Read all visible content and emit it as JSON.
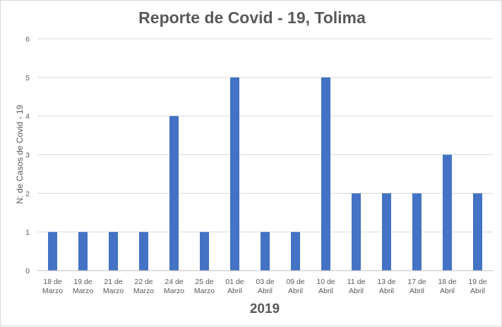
{
  "chart_data": {
    "type": "bar",
    "title": "Reporte de Covid - 19, Tolima",
    "xlabel": "2019",
    "ylabel": "N: de Casos de Covid - 19",
    "categories": [
      [
        "18 de",
        "Marzo"
      ],
      [
        "19 de",
        "Marzo"
      ],
      [
        "21 de",
        "Marzo"
      ],
      [
        "22 de",
        "Marzo"
      ],
      [
        "24 de",
        "Marzo"
      ],
      [
        "25 de",
        "Marzo"
      ],
      [
        "01 de",
        "Abril"
      ],
      [
        "03 de",
        "Abril"
      ],
      [
        "09 de",
        "Abril"
      ],
      [
        "10 de",
        "Abril"
      ],
      [
        "11 de",
        "Abril"
      ],
      [
        "13 de",
        "Abril"
      ],
      [
        "17 de",
        "Abril"
      ],
      [
        "18 de",
        "Abril"
      ],
      [
        "19 de",
        "Abril"
      ]
    ],
    "values": [
      1,
      1,
      1,
      1,
      4,
      1,
      5,
      1,
      1,
      5,
      2,
      2,
      2,
      3,
      2
    ],
    "ylim": [
      0,
      6
    ],
    "yticks": [
      0,
      1,
      2,
      3,
      4,
      5,
      6
    ],
    "grid": true,
    "legend": "none",
    "bar_color": "#4472c4"
  }
}
